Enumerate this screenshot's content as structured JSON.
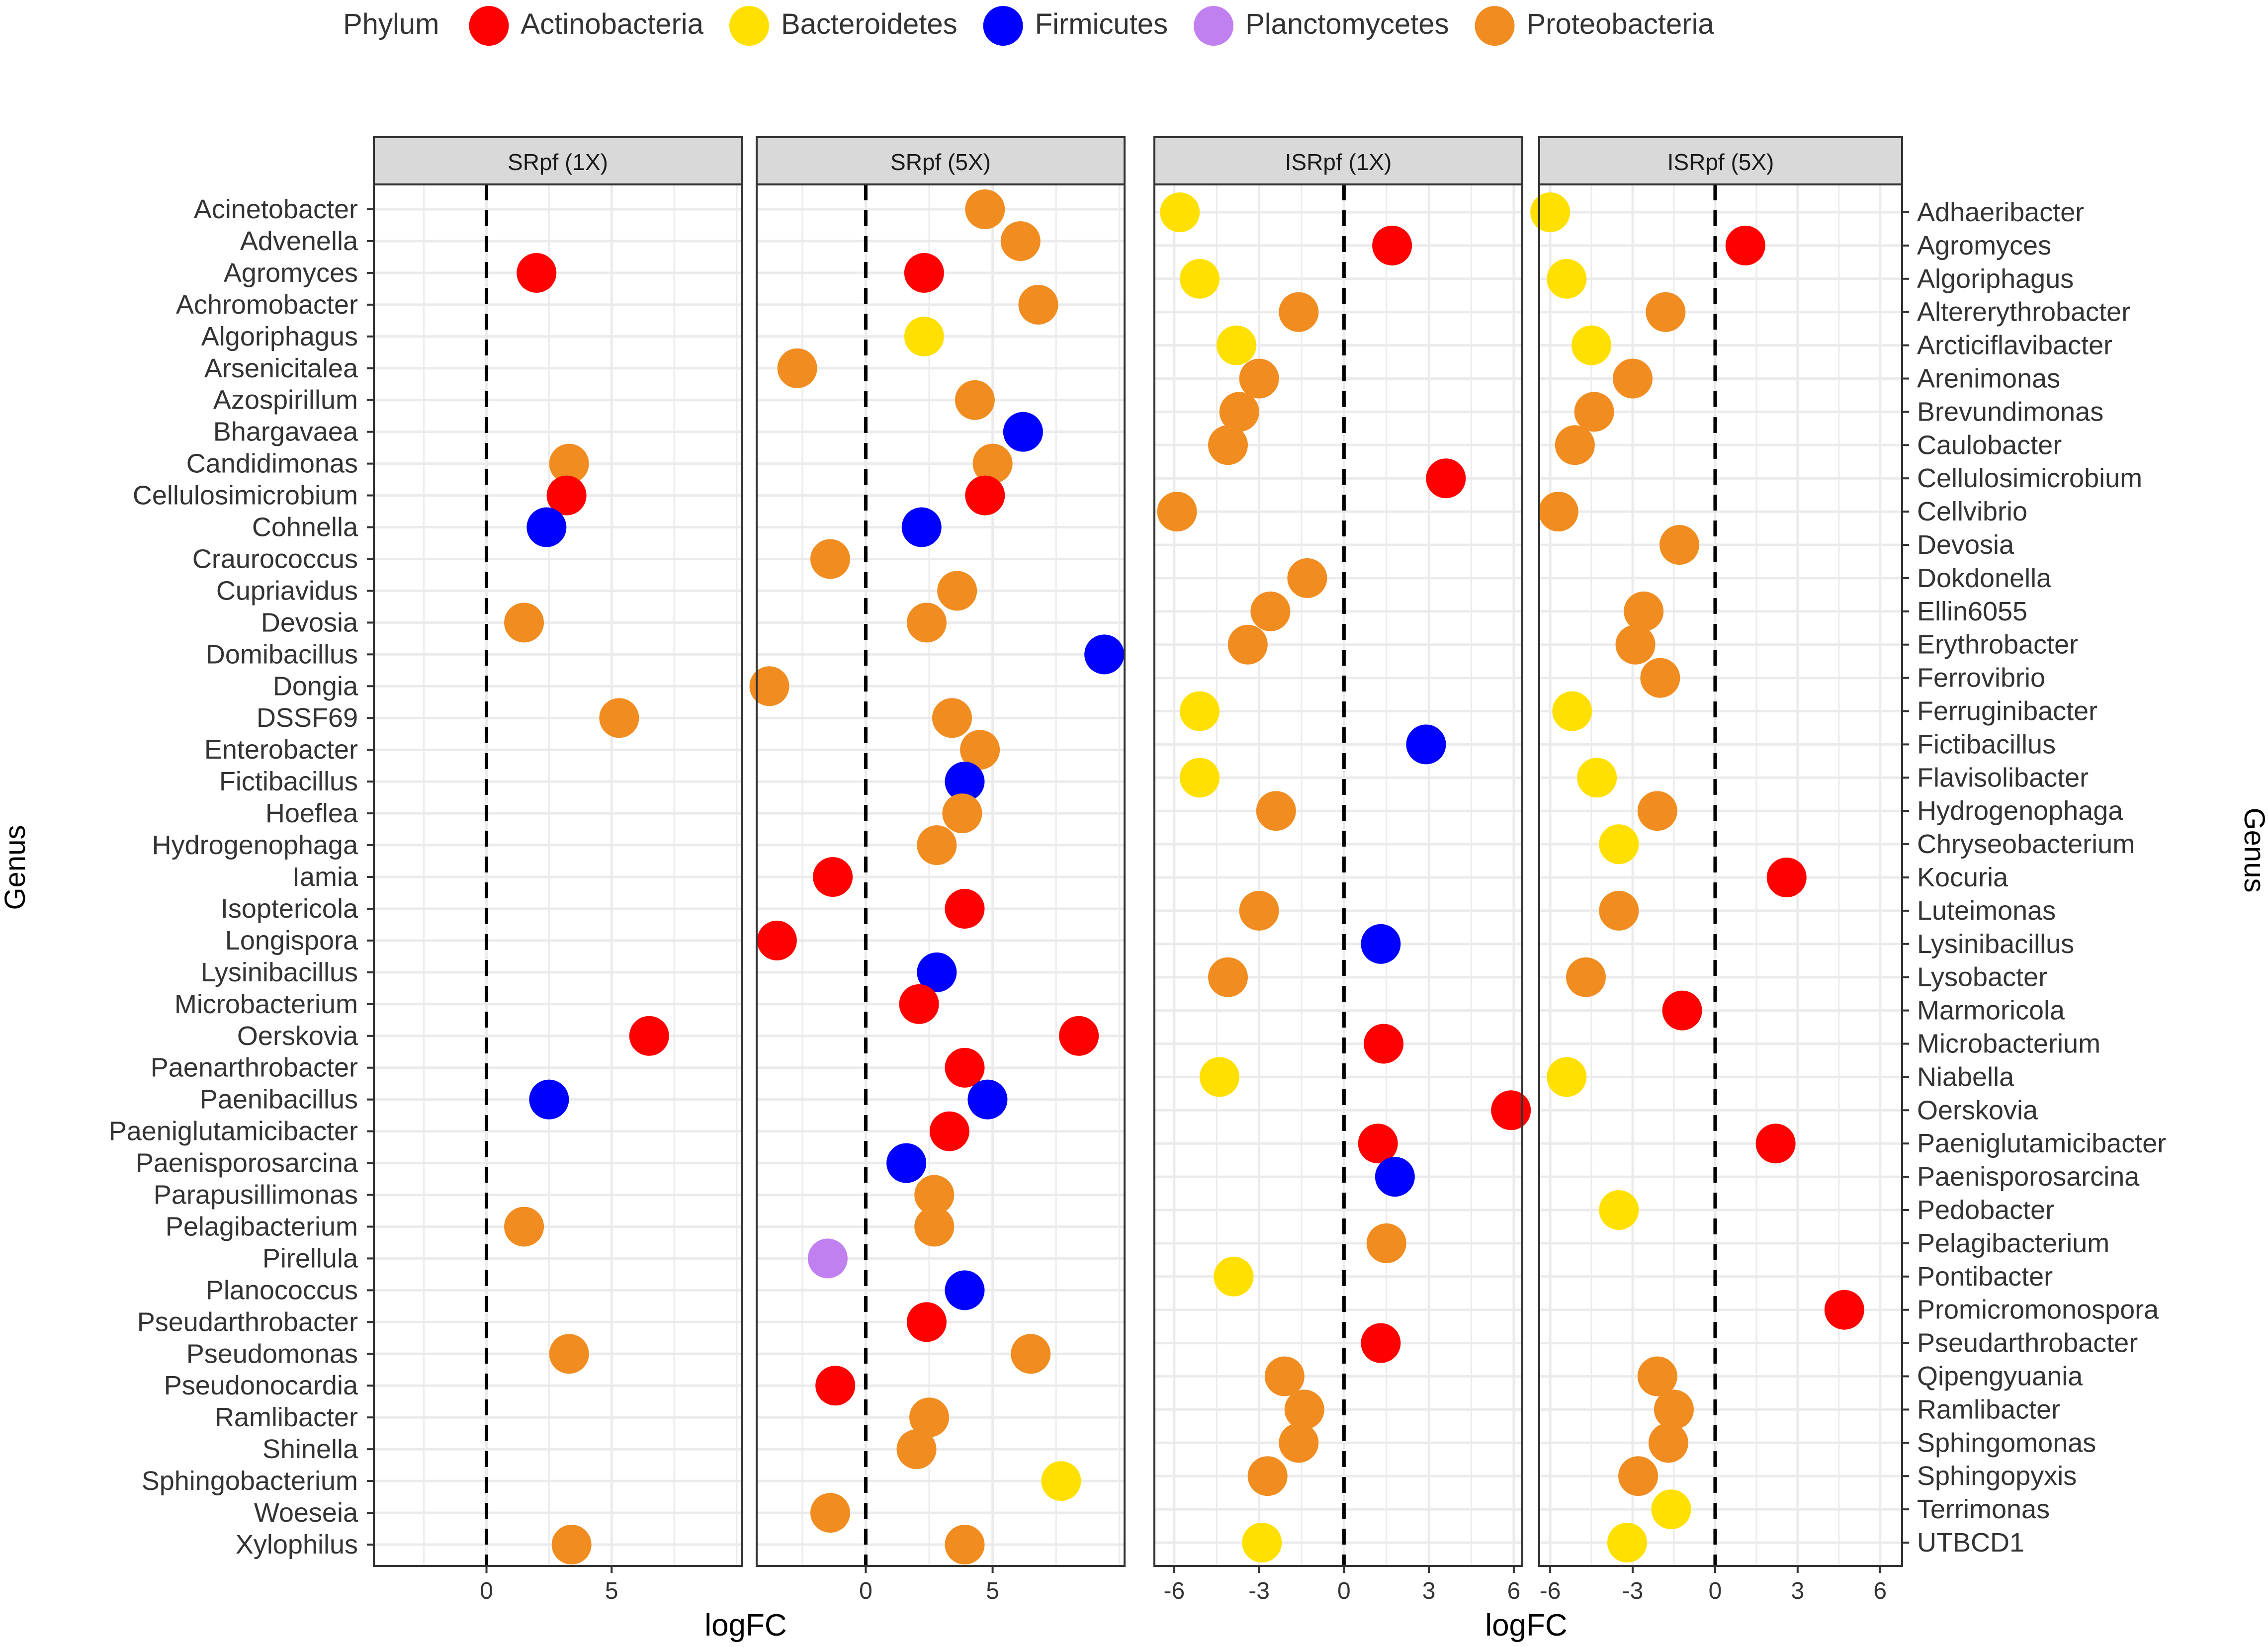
{
  "chart_data": {
    "type": "scatter",
    "x_axis_title": "logFC",
    "left_axis_title": "Genus",
    "right_axis_title": "Genus",
    "legend": {
      "title": "Phylum",
      "position": "top",
      "entries": [
        {
          "name": "Actinobacteria",
          "color": "#ff0000"
        },
        {
          "name": "Bacteroidetes",
          "color": "#ffe000"
        },
        {
          "name": "Firmicutes",
          "color": "#0000ff"
        },
        {
          "name": "Planctomycetes",
          "color": "#c080f0"
        },
        {
          "name": "Proteobacteria",
          "color": "#f08c20"
        }
      ]
    },
    "left_genera": [
      "Acinetobacter",
      "Advenella",
      "Agromyces",
      "Achromobacter",
      "Algoriphagus",
      "Arsenicitalea",
      "Azospirillum",
      "Bhargavaea",
      "Candidimonas",
      "Cellulosimicrobium",
      "Cohnella",
      "Craurococcus",
      "Cupriavidus",
      "Devosia",
      "Domibacillus",
      "Dongia",
      "DSSF69",
      "Enterobacter",
      "Fictibacillus",
      "Hoeflea",
      "Hydrogenophaga",
      "Iamia",
      "Isoptericola",
      "Longispora",
      "Lysinibacillus",
      "Microbacterium",
      "Oerskovia",
      "Paenarthrobacter",
      "Paenibacillus",
      "Paeniglutamicibacter",
      "Paenisporosarcina",
      "Parapusillimonas",
      "Pelagibacterium",
      "Pirellula",
      "Planococcus",
      "Pseudarthrobacter",
      "Pseudomonas",
      "Pseudonocardia",
      "Ramlibacter",
      "Shinella",
      "Sphingobacterium",
      "Woeseia",
      "Xylophilus"
    ],
    "right_genera": [
      "Adhaeribacter",
      "Agromyces",
      "Algoriphagus",
      "Altererythrobacter",
      "Arcticiflavibacter",
      "Arenimonas",
      "Brevundimonas",
      "Caulobacter",
      "Cellulosimicrobium",
      "Cellvibrio",
      "Devosia",
      "Dokdonella",
      "Ellin6055",
      "Erythrobacter",
      "Ferrovibrio",
      "Ferruginibacter",
      "Fictibacillus",
      "Flavisolibacter",
      "Hydrogenophaga",
      "Chryseobacterium",
      "Kocuria",
      "Luteimonas",
      "Lysinibacillus",
      "Lysobacter",
      "Marmoricola",
      "Microbacterium",
      "Niabella",
      "Oerskovia",
      "Paeniglutamicibacter",
      "Paenisporosarcina",
      "Pedobacter",
      "Pelagibacterium",
      "Pontibacter",
      "Promicromonospora",
      "Pseudarthrobacter",
      "Qipengyuania",
      "Ramlibacter",
      "Sphingomonas",
      "Sphingopyxis",
      "Terrimonas",
      "UTBCD1"
    ],
    "panels": [
      {
        "strip": "SRpf (1X)",
        "xlim": [
          -4.5,
          10.2
        ],
        "x_ticks": [
          0,
          5
        ],
        "points": [
          {
            "genus": "Agromyces",
            "x": 2.0,
            "phylum": "Actinobacteria"
          },
          {
            "genus": "Candidimonas",
            "x": 3.3,
            "phylum": "Proteobacteria"
          },
          {
            "genus": "Cellulosimicrobium",
            "x": 3.2,
            "phylum": "Actinobacteria"
          },
          {
            "genus": "Cohnella",
            "x": 2.4,
            "phylum": "Firmicutes"
          },
          {
            "genus": "Devosia",
            "x": 1.5,
            "phylum": "Proteobacteria"
          },
          {
            "genus": "DSSF69",
            "x": 5.3,
            "phylum": "Proteobacteria"
          },
          {
            "genus": "Oerskovia",
            "x": 6.5,
            "phylum": "Actinobacteria"
          },
          {
            "genus": "Paenibacillus",
            "x": 2.5,
            "phylum": "Firmicutes"
          },
          {
            "genus": "Pelagibacterium",
            "x": 1.5,
            "phylum": "Proteobacteria"
          },
          {
            "genus": "Pseudomonas",
            "x": 3.3,
            "phylum": "Proteobacteria"
          },
          {
            "genus": "Xylophilus",
            "x": 3.4,
            "phylum": "Proteobacteria"
          }
        ]
      },
      {
        "strip": "SRpf (5X)",
        "xlim": [
          -4.3,
          10.2
        ],
        "x_ticks": [
          0,
          5
        ],
        "points": [
          {
            "genus": "Acinetobacter",
            "x": 4.7,
            "phylum": "Proteobacteria"
          },
          {
            "genus": "Advenella",
            "x": 6.1,
            "phylum": "Proteobacteria"
          },
          {
            "genus": "Agromyces",
            "x": 2.3,
            "phylum": "Actinobacteria"
          },
          {
            "genus": "Achromobacter",
            "x": 6.8,
            "phylum": "Proteobacteria"
          },
          {
            "genus": "Algoriphagus",
            "x": 2.3,
            "phylum": "Bacteroidetes"
          },
          {
            "genus": "Arsenicitalea",
            "x": -2.7,
            "phylum": "Proteobacteria"
          },
          {
            "genus": "Azospirillum",
            "x": 4.3,
            "phylum": "Proteobacteria"
          },
          {
            "genus": "Bhargavaea",
            "x": 6.2,
            "phylum": "Firmicutes"
          },
          {
            "genus": "Candidimonas",
            "x": 5.0,
            "phylum": "Proteobacteria"
          },
          {
            "genus": "Cellulosimicrobium",
            "x": 4.7,
            "phylum": "Actinobacteria"
          },
          {
            "genus": "Cohnella",
            "x": 2.2,
            "phylum": "Firmicutes"
          },
          {
            "genus": "Craurococcus",
            "x": -1.4,
            "phylum": "Proteobacteria"
          },
          {
            "genus": "Cupriavidus",
            "x": 3.6,
            "phylum": "Proteobacteria"
          },
          {
            "genus": "Devosia",
            "x": 2.4,
            "phylum": "Proteobacteria"
          },
          {
            "genus": "Domibacillus",
            "x": 9.4,
            "phylum": "Firmicutes"
          },
          {
            "genus": "Dongia",
            "x": -3.8,
            "phylum": "Proteobacteria"
          },
          {
            "genus": "DSSF69",
            "x": 3.4,
            "phylum": "Proteobacteria"
          },
          {
            "genus": "Enterobacter",
            "x": 4.5,
            "phylum": "Proteobacteria"
          },
          {
            "genus": "Fictibacillus",
            "x": 3.9,
            "phylum": "Firmicutes"
          },
          {
            "genus": "Hoeflea",
            "x": 3.8,
            "phylum": "Proteobacteria"
          },
          {
            "genus": "Hydrogenophaga",
            "x": 2.8,
            "phylum": "Proteobacteria"
          },
          {
            "genus": "Iamia",
            "x": -1.3,
            "phylum": "Actinobacteria"
          },
          {
            "genus": "Isoptericola",
            "x": 3.9,
            "phylum": "Actinobacteria"
          },
          {
            "genus": "Longispora",
            "x": -3.5,
            "phylum": "Actinobacteria"
          },
          {
            "genus": "Lysinibacillus",
            "x": 2.8,
            "phylum": "Firmicutes"
          },
          {
            "genus": "Microbacterium",
            "x": 2.1,
            "phylum": "Actinobacteria"
          },
          {
            "genus": "Oerskovia",
            "x": 8.4,
            "phylum": "Actinobacteria"
          },
          {
            "genus": "Paenarthrobacter",
            "x": 3.9,
            "phylum": "Actinobacteria"
          },
          {
            "genus": "Paenibacillus",
            "x": 4.8,
            "phylum": "Firmicutes"
          },
          {
            "genus": "Paeniglutamicibacter",
            "x": 3.3,
            "phylum": "Actinobacteria"
          },
          {
            "genus": "Paenisporosarcina",
            "x": 1.6,
            "phylum": "Firmicutes"
          },
          {
            "genus": "Parapusillimonas",
            "x": 2.7,
            "phylum": "Proteobacteria"
          },
          {
            "genus": "Pelagibacterium",
            "x": 2.7,
            "phylum": "Proteobacteria"
          },
          {
            "genus": "Pirellula",
            "x": -1.5,
            "phylum": "Planctomycetes"
          },
          {
            "genus": "Planococcus",
            "x": 3.9,
            "phylum": "Firmicutes"
          },
          {
            "genus": "Pseudarthrobacter",
            "x": 2.4,
            "phylum": "Actinobacteria"
          },
          {
            "genus": "Pseudomonas",
            "x": 6.5,
            "phylum": "Proteobacteria"
          },
          {
            "genus": "Pseudonocardia",
            "x": -1.2,
            "phylum": "Actinobacteria"
          },
          {
            "genus": "Ramlibacter",
            "x": 2.5,
            "phylum": "Proteobacteria"
          },
          {
            "genus": "Shinella",
            "x": 2.0,
            "phylum": "Proteobacteria"
          },
          {
            "genus": "Sphingobacterium",
            "x": 7.7,
            "phylum": "Bacteroidetes"
          },
          {
            "genus": "Woeseia",
            "x": -1.4,
            "phylum": "Proteobacteria"
          },
          {
            "genus": "Xylophilus",
            "x": 3.9,
            "phylum": "Proteobacteria"
          }
        ]
      },
      {
        "strip": "ISRpf (1X)",
        "xlim": [
          -6.7,
          6.3
        ],
        "x_ticks": [
          -6,
          -3,
          0,
          3,
          6
        ],
        "points": [
          {
            "genus": "Adhaeribacter",
            "x": -5.8,
            "phylum": "Bacteroidetes"
          },
          {
            "genus": "Agromyces",
            "x": 1.7,
            "phylum": "Actinobacteria"
          },
          {
            "genus": "Algoriphagus",
            "x": -5.1,
            "phylum": "Bacteroidetes"
          },
          {
            "genus": "Altererythrobacter",
            "x": -1.6,
            "phylum": "Proteobacteria"
          },
          {
            "genus": "Arcticiflavibacter",
            "x": -3.8,
            "phylum": "Bacteroidetes"
          },
          {
            "genus": "Arenimonas",
            "x": -3.0,
            "phylum": "Proteobacteria"
          },
          {
            "genus": "Brevundimonas",
            "x": -3.7,
            "phylum": "Proteobacteria"
          },
          {
            "genus": "Caulobacter",
            "x": -4.1,
            "phylum": "Proteobacteria"
          },
          {
            "genus": "Cellulosimicrobium",
            "x": 3.6,
            "phylum": "Actinobacteria"
          },
          {
            "genus": "Cellvibrio",
            "x": -5.9,
            "phylum": "Proteobacteria"
          },
          {
            "genus": "Dokdonella",
            "x": -1.3,
            "phylum": "Proteobacteria"
          },
          {
            "genus": "Ellin6055",
            "x": -2.6,
            "phylum": "Proteobacteria"
          },
          {
            "genus": "Erythrobacter",
            "x": -3.4,
            "phylum": "Proteobacteria"
          },
          {
            "genus": "Ferruginibacter",
            "x": -5.1,
            "phylum": "Bacteroidetes"
          },
          {
            "genus": "Fictibacillus",
            "x": 2.9,
            "phylum": "Firmicutes"
          },
          {
            "genus": "Flavisolibacter",
            "x": -5.1,
            "phylum": "Bacteroidetes"
          },
          {
            "genus": "Hydrogenophaga",
            "x": -2.4,
            "phylum": "Proteobacteria"
          },
          {
            "genus": "Luteimonas",
            "x": -3.0,
            "phylum": "Proteobacteria"
          },
          {
            "genus": "Lysinibacillus",
            "x": 1.3,
            "phylum": "Firmicutes"
          },
          {
            "genus": "Lysobacter",
            "x": -4.1,
            "phylum": "Proteobacteria"
          },
          {
            "genus": "Microbacterium",
            "x": 1.4,
            "phylum": "Actinobacteria"
          },
          {
            "genus": "Niabella",
            "x": -4.4,
            "phylum": "Bacteroidetes"
          },
          {
            "genus": "Oerskovia",
            "x": 5.9,
            "phylum": "Actinobacteria"
          },
          {
            "genus": "Paeniglutamicibacter",
            "x": 1.2,
            "phylum": "Actinobacteria"
          },
          {
            "genus": "Paenisporosarcina",
            "x": 1.8,
            "phylum": "Firmicutes"
          },
          {
            "genus": "Pelagibacterium",
            "x": 1.5,
            "phylum": "Proteobacteria"
          },
          {
            "genus": "Pontibacter",
            "x": -3.9,
            "phylum": "Bacteroidetes"
          },
          {
            "genus": "Pseudarthrobacter",
            "x": 1.3,
            "phylum": "Actinobacteria"
          },
          {
            "genus": "Qipengyuania",
            "x": -2.1,
            "phylum": "Proteobacteria"
          },
          {
            "genus": "Ramlibacter",
            "x": -1.4,
            "phylum": "Proteobacteria"
          },
          {
            "genus": "Sphingomonas",
            "x": -1.6,
            "phylum": "Proteobacteria"
          },
          {
            "genus": "Sphingopyxis",
            "x": -2.7,
            "phylum": "Proteobacteria"
          },
          {
            "genus": "UTBCD1",
            "x": -2.9,
            "phylum": "Bacteroidetes"
          }
        ]
      },
      {
        "strip": "ISRpf (5X)",
        "xlim": [
          -6.4,
          6.8
        ],
        "x_ticks": [
          -6,
          -3,
          0,
          3,
          6
        ],
        "points": [
          {
            "genus": "Adhaeribacter",
            "x": -6.0,
            "phylum": "Bacteroidetes"
          },
          {
            "genus": "Agromyces",
            "x": 1.1,
            "phylum": "Actinobacteria"
          },
          {
            "genus": "Algoriphagus",
            "x": -5.4,
            "phylum": "Bacteroidetes"
          },
          {
            "genus": "Altererythrobacter",
            "x": -1.8,
            "phylum": "Proteobacteria"
          },
          {
            "genus": "Arcticiflavibacter",
            "x": -4.5,
            "phylum": "Bacteroidetes"
          },
          {
            "genus": "Arenimonas",
            "x": -3.0,
            "phylum": "Proteobacteria"
          },
          {
            "genus": "Brevundimonas",
            "x": -4.4,
            "phylum": "Proteobacteria"
          },
          {
            "genus": "Caulobacter",
            "x": -5.1,
            "phylum": "Proteobacteria"
          },
          {
            "genus": "Cellvibrio",
            "x": -5.7,
            "phylum": "Proteobacteria"
          },
          {
            "genus": "Devosia",
            "x": -1.3,
            "phylum": "Proteobacteria"
          },
          {
            "genus": "Ellin6055",
            "x": -2.6,
            "phylum": "Proteobacteria"
          },
          {
            "genus": "Erythrobacter",
            "x": -2.9,
            "phylum": "Proteobacteria"
          },
          {
            "genus": "Ferrovibrio",
            "x": -2.0,
            "phylum": "Proteobacteria"
          },
          {
            "genus": "Ferruginibacter",
            "x": -5.2,
            "phylum": "Bacteroidetes"
          },
          {
            "genus": "Flavisolibacter",
            "x": -4.3,
            "phylum": "Bacteroidetes"
          },
          {
            "genus": "Hydrogenophaga",
            "x": -2.1,
            "phylum": "Proteobacteria"
          },
          {
            "genus": "Chryseobacterium",
            "x": -3.5,
            "phylum": "Bacteroidetes"
          },
          {
            "genus": "Kocuria",
            "x": 2.6,
            "phylum": "Actinobacteria"
          },
          {
            "genus": "Luteimonas",
            "x": -3.5,
            "phylum": "Proteobacteria"
          },
          {
            "genus": "Lysobacter",
            "x": -4.7,
            "phylum": "Proteobacteria"
          },
          {
            "genus": "Marmoricola",
            "x": -1.2,
            "phylum": "Actinobacteria"
          },
          {
            "genus": "Niabella",
            "x": -5.4,
            "phylum": "Bacteroidetes"
          },
          {
            "genus": "Paeniglutamicibacter",
            "x": 2.2,
            "phylum": "Actinobacteria"
          },
          {
            "genus": "Pedobacter",
            "x": -3.5,
            "phylum": "Bacteroidetes"
          },
          {
            "genus": "Promicromonospora",
            "x": 4.7,
            "phylum": "Actinobacteria"
          },
          {
            "genus": "Qipengyuania",
            "x": -2.1,
            "phylum": "Proteobacteria"
          },
          {
            "genus": "Ramlibacter",
            "x": -1.5,
            "phylum": "Proteobacteria"
          },
          {
            "genus": "Sphingomonas",
            "x": -1.7,
            "phylum": "Proteobacteria"
          },
          {
            "genus": "Sphingopyxis",
            "x": -2.8,
            "phylum": "Proteobacteria"
          },
          {
            "genus": "Terrimonas",
            "x": -1.6,
            "phylum": "Bacteroidetes"
          },
          {
            "genus": "UTBCD1",
            "x": -3.2,
            "phylum": "Bacteroidetes"
          }
        ]
      }
    ]
  }
}
